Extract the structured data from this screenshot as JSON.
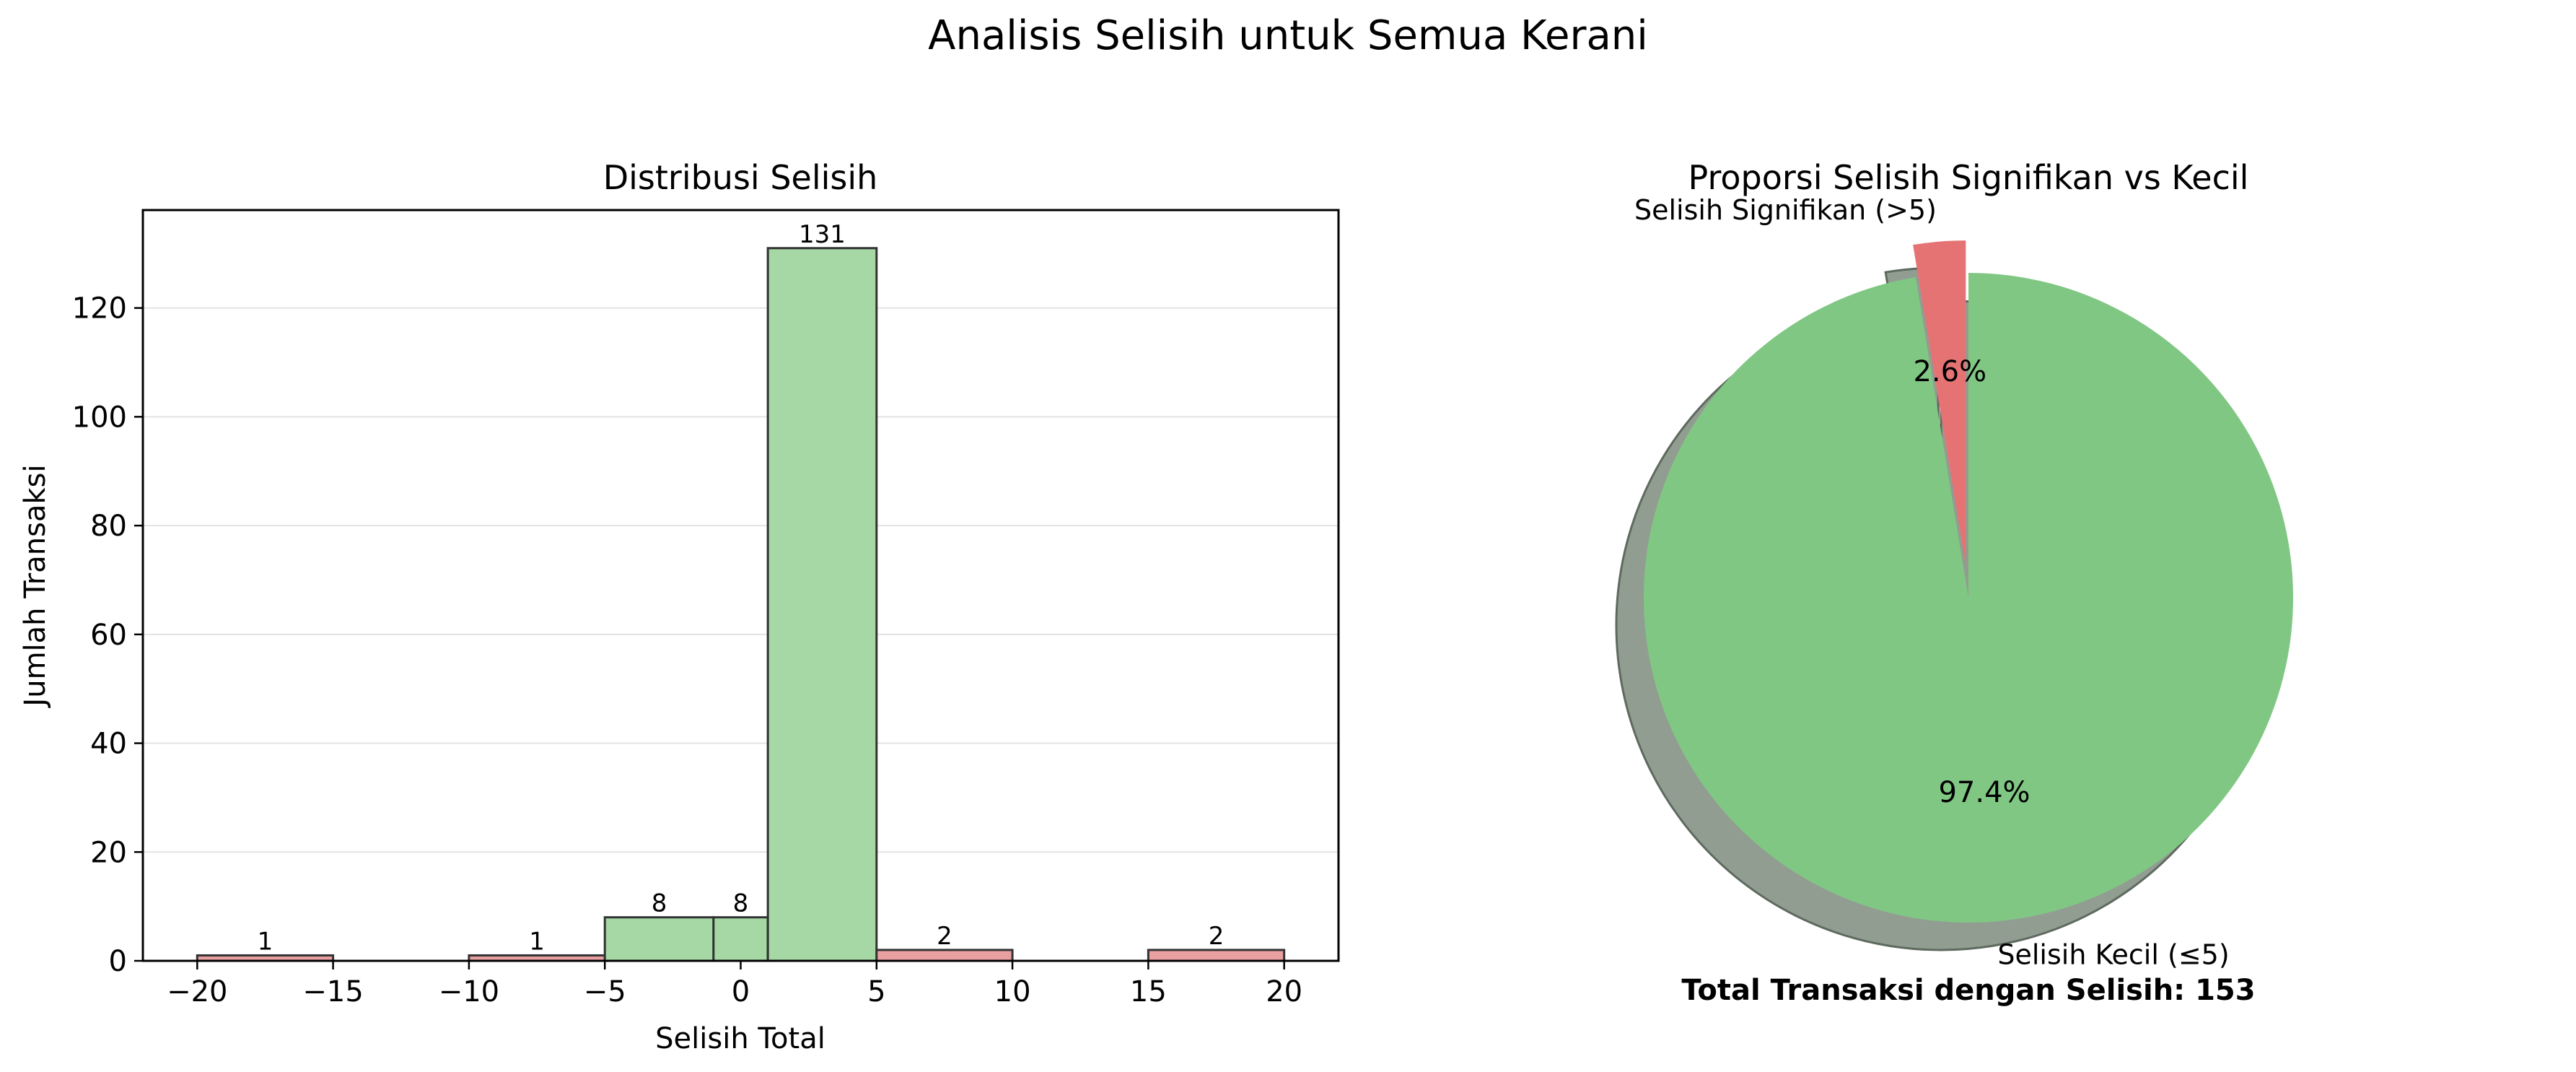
{
  "figure": {
    "suptitle": "Analisis Selisih untuk Semua Kerani"
  },
  "chart_data": [
    {
      "type": "bar",
      "title": "Distribusi Selisih",
      "xlabel": "Selisih Total",
      "ylabel": "Jumlah Transaksi",
      "xlim": [
        -22,
        22
      ],
      "ylim": [
        0,
        138
      ],
      "xticks": [
        -20,
        -15,
        -10,
        -5,
        0,
        5,
        10,
        15,
        20
      ],
      "yticks": [
        0,
        20,
        40,
        60,
        80,
        100,
        120
      ],
      "grid": "y",
      "bins": [
        {
          "x0": -20,
          "x1": -15,
          "count": 1,
          "label": "1",
          "color": "#e8a0a0"
        },
        {
          "x0": -10,
          "x1": -5,
          "count": 1,
          "label": "1",
          "color": "#e8a0a0"
        },
        {
          "x0": -5,
          "x1": -1,
          "count": 8,
          "label": "8",
          "color": "#a5d8a5"
        },
        {
          "x0": -1,
          "x1": 1,
          "count": 8,
          "label": "8",
          "color": "#a5d8a5"
        },
        {
          "x0": 1,
          "x1": 5,
          "count": 131,
          "label": "131",
          "color": "#a5d8a5"
        },
        {
          "x0": 5,
          "x1": 10,
          "count": 2,
          "label": "2",
          "color": "#e8a0a0"
        },
        {
          "x0": 15,
          "x1": 20,
          "count": 2,
          "label": "2",
          "color": "#e8a0a0"
        }
      ]
    },
    {
      "type": "pie",
      "title": "Proporsi Selisih Signifikan vs Kecil",
      "slices": [
        {
          "label": "Selisih Signifikan (>5)",
          "value": 2.6,
          "pct_label": "2.6%",
          "color": "#e57373",
          "explode": true
        },
        {
          "label": "Selisih Kecil (≤5)",
          "value": 97.4,
          "pct_label": "97.4%",
          "color": "#81c784",
          "explode": false
        }
      ],
      "shadow": true,
      "start_angle": 90,
      "footer": "Total Transaksi dengan Selisih: 153"
    }
  ]
}
